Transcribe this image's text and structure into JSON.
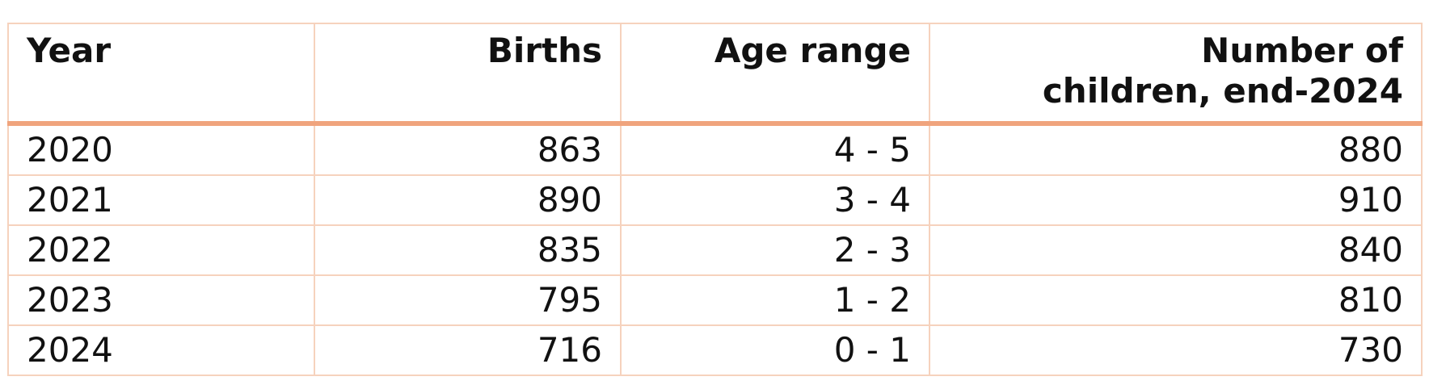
{
  "table": {
    "header": [
      "Year",
      "Births",
      "Age range",
      "Number of children, end-2024"
    ],
    "rows": [
      [
        2020,
        863,
        "4 - 5",
        880
      ],
      [
        2021,
        890,
        "3 - 4",
        910
      ],
      [
        2022,
        835,
        "2 - 3",
        840
      ],
      [
        2023,
        795,
        "1 - 2",
        810
      ],
      [
        2024,
        716,
        "0 - 1",
        730
      ]
    ]
  }
}
